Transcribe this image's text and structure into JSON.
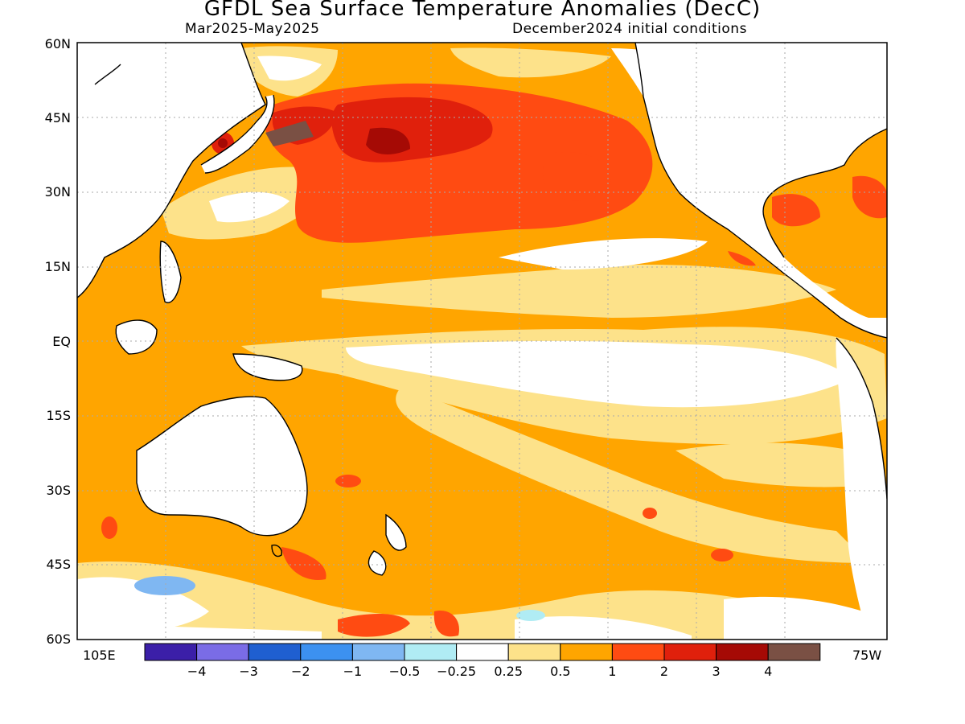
{
  "title": "GFDL Sea Surface Temperature Anomalies (DecC)",
  "subtitle_left": "Mar2025-May2025",
  "subtitle_right": "December2024 initial conditions",
  "lat_labels": [
    "60N",
    "45N",
    "30N",
    "15N",
    "EQ",
    "15S",
    "30S",
    "45S",
    "60S"
  ],
  "lon_left_label": "105E",
  "lon_right_label": "75W",
  "colorbar": {
    "colors": [
      "#3b1fa8",
      "#7a6ce6",
      "#1f5fd0",
      "#3c91f0",
      "#7fb7f2",
      "#b0ecf4",
      "#ffffff",
      "#fde28a",
      "#ffa500",
      "#ff4b12",
      "#e0200c",
      "#a50a05",
      "#7a5044"
    ],
    "labels": [
      "-4",
      "-3",
      "-2",
      "-1",
      "-0.5",
      "-0.25",
      "0.25",
      "0.5",
      "1",
      "2",
      "3",
      "4"
    ]
  },
  "legend_level_colors": {
    "white": "#ffffff",
    "light_yellow": "#fde28a",
    "orange": "#ffa500",
    "red_orange": "#ff4b12",
    "red": "#e0200c",
    "dark_red": "#a50a05",
    "brown": "#7a5044",
    "light_blue": "#b0ecf4",
    "blue": "#7fb7f2"
  }
}
